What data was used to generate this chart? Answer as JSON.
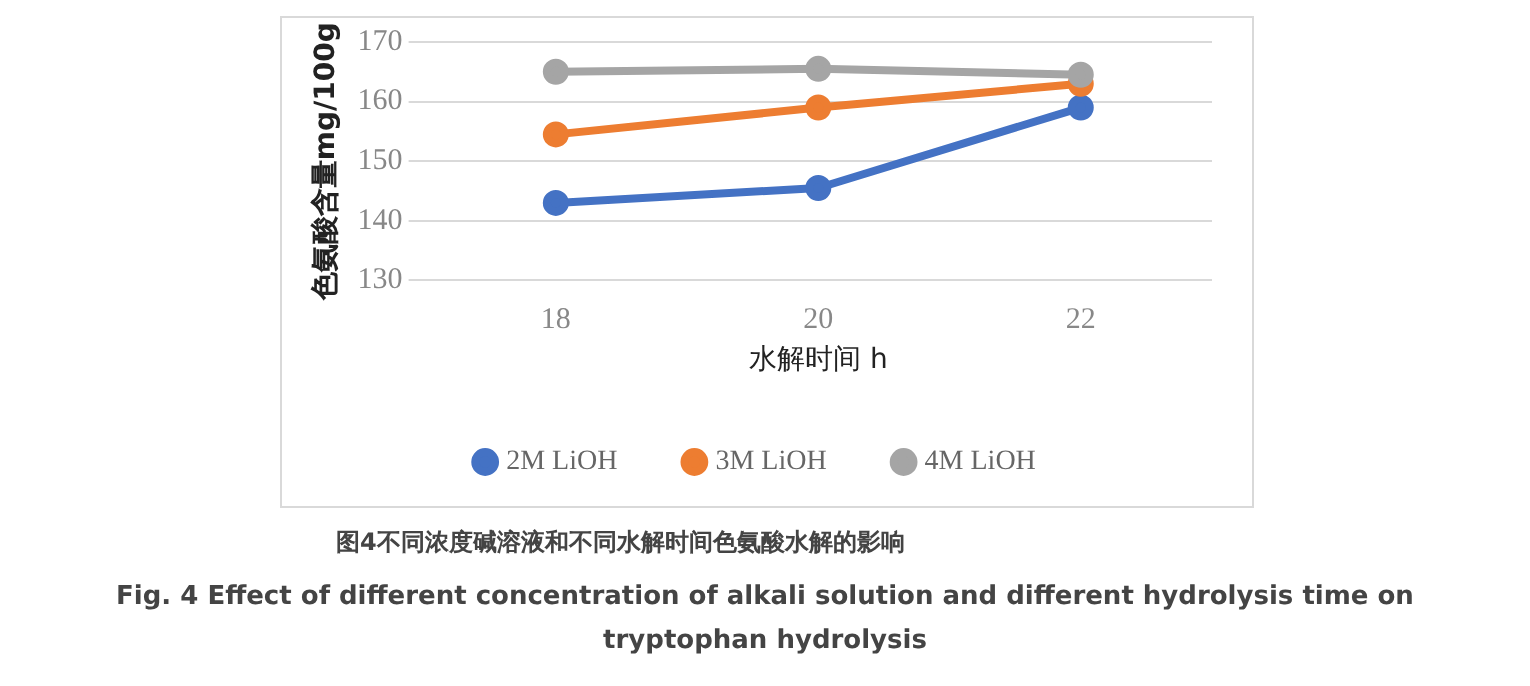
{
  "chart_data": {
    "type": "line",
    "xlabel": "水解时间 h",
    "ylabel": "色氨酸含量mg/100g",
    "categories": [
      "18",
      "20",
      "22"
    ],
    "series": [
      {
        "name": "2M LiOH",
        "color": "#4472c4",
        "values": [
          143,
          145.5,
          159
        ]
      },
      {
        "name": "3M LiOH",
        "color": "#ed7d31",
        "values": [
          154.5,
          159,
          163
        ]
      },
      {
        "name": "4M LiOH",
        "color": "#a5a5a5",
        "values": [
          165,
          165.5,
          164.5
        ]
      }
    ],
    "ylim": [
      130,
      170
    ],
    "yticks": [
      130,
      140,
      150,
      160,
      170
    ],
    "grid": "y",
    "legend": "bottom",
    "marker": "circle",
    "line_style": "solid",
    "annotations": [
      "图4不同浓度碱溶液和不同水解时间色氨酸水解的影响",
      "Fig. 4 Effect of different concentration of alkali solution and different hydrolysis time on tryptophan hydrolysis"
    ]
  }
}
